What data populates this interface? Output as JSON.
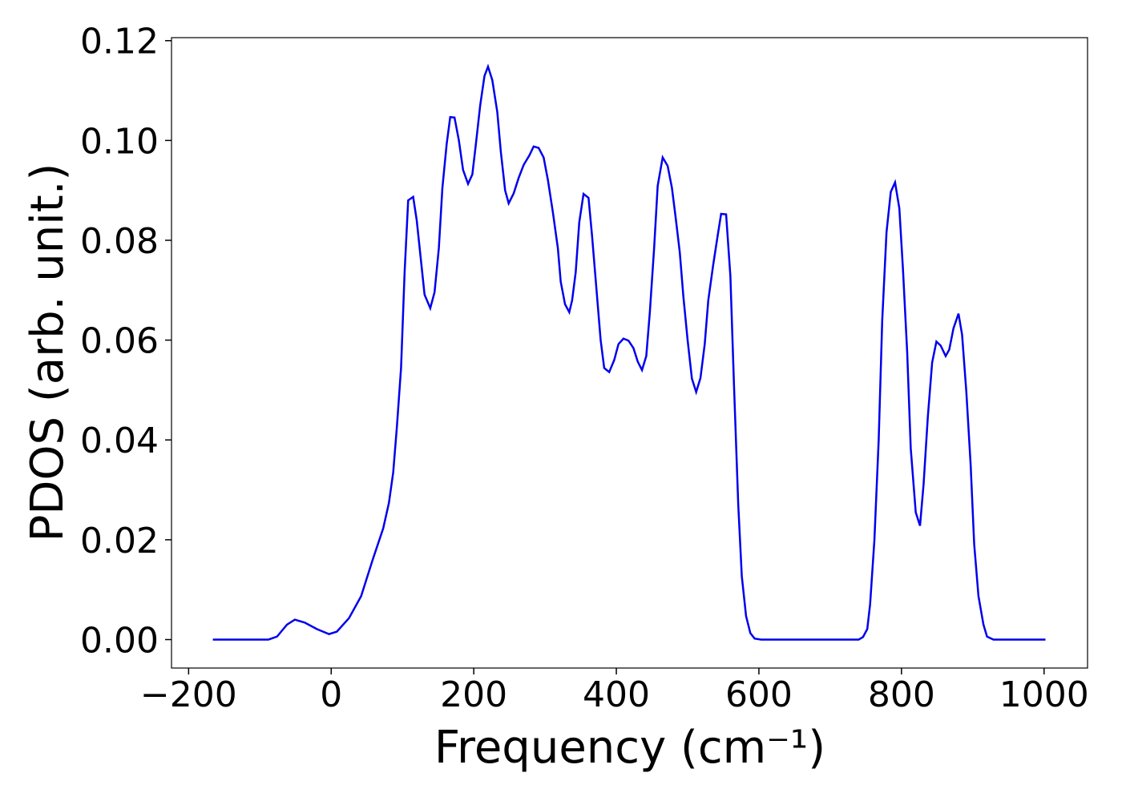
{
  "chart_data": {
    "type": "line",
    "xlabel": "Frequency (cm⁻¹)",
    "ylabel": "PDOS (arb. unit.)",
    "x": [
      -166,
      -88,
      -76,
      -62,
      -51,
      -37,
      -20,
      -3,
      8,
      25,
      42,
      58,
      73,
      81,
      87,
      92,
      98,
      103,
      108,
      115,
      120,
      131,
      139,
      145,
      151,
      156,
      162,
      167,
      173,
      179,
      185,
      192,
      198,
      203,
      209,
      215,
      220,
      226,
      233,
      238,
      244,
      249,
      256,
      263,
      270,
      278,
      284,
      291,
      298,
      304,
      311,
      318,
      322,
      328,
      334,
      338,
      343,
      348,
      354,
      361,
      366,
      372,
      378,
      383,
      390,
      397,
      403,
      410,
      417,
      424,
      430,
      436,
      442,
      447,
      453,
      458,
      465,
      472,
      478,
      483,
      489,
      494,
      500,
      506,
      512,
      518,
      524,
      529,
      536,
      542,
      547,
      554,
      560,
      565,
      571,
      576,
      582,
      588,
      594,
      603,
      740,
      746,
      752,
      756,
      762,
      768,
      773,
      779,
      785,
      791,
      797,
      802,
      808,
      813,
      820,
      826,
      831,
      837,
      843,
      849,
      855,
      862,
      867,
      873,
      880,
      885,
      891,
      897,
      902,
      908,
      915,
      920,
      929,
      1002
    ],
    "series": [
      {
        "color": "#0000ee",
        "values": [
          0,
          0,
          0.0006,
          0.003,
          0.004,
          0.0034,
          0.0021,
          0.0011,
          0.0016,
          0.0043,
          0.0087,
          0.0159,
          0.0223,
          0.0274,
          0.0335,
          0.0423,
          0.0544,
          0.0736,
          0.088,
          0.0887,
          0.084,
          0.0691,
          0.0664,
          0.0696,
          0.0784,
          0.0905,
          0.0993,
          0.1047,
          0.1046,
          0.1001,
          0.0941,
          0.0913,
          0.0932,
          0.0993,
          0.107,
          0.1129,
          0.1148,
          0.1121,
          0.1057,
          0.0977,
          0.09,
          0.0874,
          0.0894,
          0.0925,
          0.0951,
          0.097,
          0.0988,
          0.0985,
          0.0966,
          0.0921,
          0.0856,
          0.0784,
          0.0717,
          0.0672,
          0.0656,
          0.068,
          0.0736,
          0.0836,
          0.0893,
          0.0885,
          0.0808,
          0.0704,
          0.06,
          0.0544,
          0.0536,
          0.056,
          0.0592,
          0.0603,
          0.0599,
          0.0584,
          0.0557,
          0.054,
          0.0568,
          0.0656,
          0.0784,
          0.0909,
          0.0966,
          0.0949,
          0.0905,
          0.0848,
          0.0776,
          0.0688,
          0.06,
          0.0523,
          0.0496,
          0.0524,
          0.0592,
          0.068,
          0.0752,
          0.0808,
          0.0853,
          0.0852,
          0.0728,
          0.0512,
          0.0271,
          0.0127,
          0.0047,
          0.0013,
          0.0002,
          0,
          0,
          0.0005,
          0.0021,
          0.0071,
          0.0199,
          0.0399,
          0.064,
          0.0816,
          0.0897,
          0.0916,
          0.0864,
          0.0744,
          0.0576,
          0.0383,
          0.0255,
          0.0228,
          0.0311,
          0.0447,
          0.0555,
          0.0597,
          0.0589,
          0.0568,
          0.0581,
          0.0624,
          0.0653,
          0.0611,
          0.0496,
          0.0351,
          0.0191,
          0.0087,
          0.003,
          0.0006,
          0,
          0
        ]
      }
    ],
    "xlim": [
      -224,
      1061
    ],
    "ylim": [
      -0.0057,
      0.1206
    ],
    "xticks": [
      {
        "value": -200,
        "label": "−200"
      },
      0,
      200,
      400,
      600,
      800,
      1000
    ],
    "yticks": [
      {
        "value": 0,
        "label": "0.00"
      },
      0.02,
      0.04,
      0.06,
      0.08,
      {
        "value": 0.1,
        "label": "0.10"
      },
      0.12
    ]
  }
}
